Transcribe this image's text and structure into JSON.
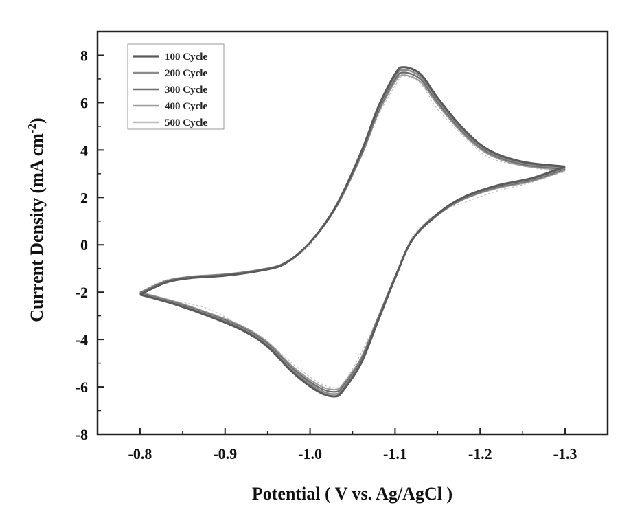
{
  "chart_data": {
    "type": "line",
    "title": "",
    "xlabel": "Potential ( V vs. Ag/AgCl )",
    "ylabel": "Current Density (mA cm",
    "ylabel_sup": "-2",
    "ylabel_close": ")",
    "xlim": [
      -0.75,
      -1.35
    ],
    "ylim": [
      -8,
      9
    ],
    "x_reversed": true,
    "x_ticks": [
      -0.8,
      -0.9,
      -1.0,
      -1.1,
      -1.2,
      -1.3
    ],
    "x_tick_labels": [
      "-0.8",
      "-0.9",
      "-1.0",
      "-1.1",
      "-1.2",
      "-1.3"
    ],
    "y_ticks": [
      -8,
      -6,
      -4,
      -2,
      0,
      2,
      4,
      6,
      8
    ],
    "y_tick_labels": [
      "-8",
      "-6",
      "-4",
      "-2",
      "0",
      "2",
      "4",
      "6",
      "8"
    ],
    "grid": false,
    "legend_position": "top-left",
    "series": [
      {
        "name": "100 Cycle",
        "color": "#5a5a5a",
        "width": 3.2,
        "scale": 1.0,
        "noise": 0
      },
      {
        "name": "200 Cycle",
        "color": "#8a8a8a",
        "width": 2.6,
        "scale": 0.985,
        "noise": 0
      },
      {
        "name": "300 Cycle",
        "color": "#6e6e6e",
        "width": 2.4,
        "scale": 0.97,
        "noise": 0
      },
      {
        "name": "400 Cycle",
        "color": "#9c9c9c",
        "width": 2.2,
        "scale": 0.955,
        "noise": 0
      },
      {
        "name": "500 Cycle",
        "color": "#bdbdbd",
        "width": 1.2,
        "scale": 0.94,
        "noise": 0.25
      }
    ],
    "cv_scan": {
      "forward": [
        [
          -0.8,
          -2.1
        ],
        [
          -0.83,
          -1.6
        ],
        [
          -0.86,
          -1.4
        ],
        [
          -0.9,
          -1.3
        ],
        [
          -0.94,
          -1.1
        ],
        [
          -0.97,
          -0.8
        ],
        [
          -1.0,
          0.1
        ],
        [
          -1.03,
          1.6
        ],
        [
          -1.06,
          3.9
        ],
        [
          -1.08,
          5.8
        ],
        [
          -1.1,
          7.2
        ],
        [
          -1.11,
          7.5
        ],
        [
          -1.13,
          7.2
        ],
        [
          -1.15,
          6.2
        ],
        [
          -1.18,
          4.9
        ],
        [
          -1.21,
          4.0
        ],
        [
          -1.25,
          3.5
        ],
        [
          -1.3,
          3.3
        ]
      ],
      "reverse": [
        [
          -1.3,
          3.3
        ],
        [
          -1.26,
          2.8
        ],
        [
          -1.22,
          2.5
        ],
        [
          -1.18,
          2.0
        ],
        [
          -1.15,
          1.3
        ],
        [
          -1.12,
          0.2
        ],
        [
          -1.1,
          -1.4
        ],
        [
          -1.08,
          -3.2
        ],
        [
          -1.06,
          -5.0
        ],
        [
          -1.04,
          -6.1
        ],
        [
          -1.03,
          -6.4
        ],
        [
          -1.01,
          -6.2
        ],
        [
          -0.98,
          -5.4
        ],
        [
          -0.95,
          -4.3
        ],
        [
          -0.92,
          -3.6
        ],
        [
          -0.88,
          -3.0
        ],
        [
          -0.84,
          -2.5
        ],
        [
          -0.8,
          -2.1
        ]
      ]
    }
  }
}
